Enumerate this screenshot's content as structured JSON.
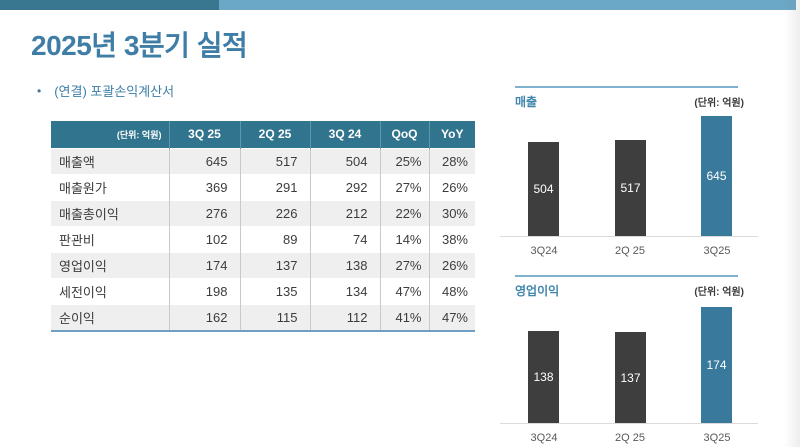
{
  "header": {
    "title": "2025년 3분기 실적",
    "bullet": "•",
    "subtitle": "(연결) 포괄손익계산서"
  },
  "table": {
    "unit_header": "(단위: 억원)",
    "columns": [
      "3Q 25",
      "2Q 25",
      "3Q 24",
      "QoQ",
      "YoY"
    ],
    "rows": [
      {
        "label": "매출액",
        "values": [
          "645",
          "517",
          "504",
          "25%",
          "28%"
        ]
      },
      {
        "label": "매출원가",
        "values": [
          "369",
          "291",
          "292",
          "27%",
          "26%"
        ]
      },
      {
        "label": "매출총이익",
        "values": [
          "276",
          "226",
          "212",
          "22%",
          "30%"
        ]
      },
      {
        "label": "판관비",
        "values": [
          "102",
          "89",
          "74",
          "14%",
          "38%"
        ]
      },
      {
        "label": "영업이익",
        "values": [
          "174",
          "137",
          "138",
          "27%",
          "26%"
        ]
      },
      {
        "label": "세전이익",
        "values": [
          "198",
          "135",
          "134",
          "47%",
          "48%"
        ]
      },
      {
        "label": "순이익",
        "values": [
          "162",
          "115",
          "112",
          "41%",
          "47%"
        ]
      }
    ]
  },
  "chart_data": [
    {
      "type": "bar",
      "title": "매출",
      "unit_label": "(단위: 억원)",
      "categories": [
        "3Q24",
        "2Q 25",
        "3Q25"
      ],
      "values": [
        504,
        517,
        645
      ],
      "bar_colors": [
        "#3E3E3E",
        "#3E3E3E",
        "#38799C"
      ],
      "value_label_color": "#FFFFFF",
      "ylim": [
        0,
        645
      ],
      "grid": false,
      "legend": "none"
    },
    {
      "type": "bar",
      "title": "영업이익",
      "unit_label": "(단위: 억원)",
      "categories": [
        "3Q24",
        "2Q 25",
        "3Q25"
      ],
      "values": [
        138,
        137,
        174
      ],
      "bar_colors": [
        "#3E3E3E",
        "#3E3E3E",
        "#38799C"
      ],
      "value_label_color": "#FFFFFF",
      "ylim": [
        0,
        174
      ],
      "grid": false,
      "legend": "none"
    }
  ],
  "colors": {
    "topbar_dark": "#38778F",
    "topbar_light": "#6BA7C6",
    "title_blue": "#3E7EA6",
    "table_header_bg": "#31748D",
    "row_alt_bg": "#EFEFEF",
    "table_bottom_border": "#6FA0C4",
    "chart_rule": "#7FB2CE",
    "bar_dark": "#3E3E3E",
    "bar_accent": "#38799C",
    "axis_line": "#DBDBDB"
  }
}
